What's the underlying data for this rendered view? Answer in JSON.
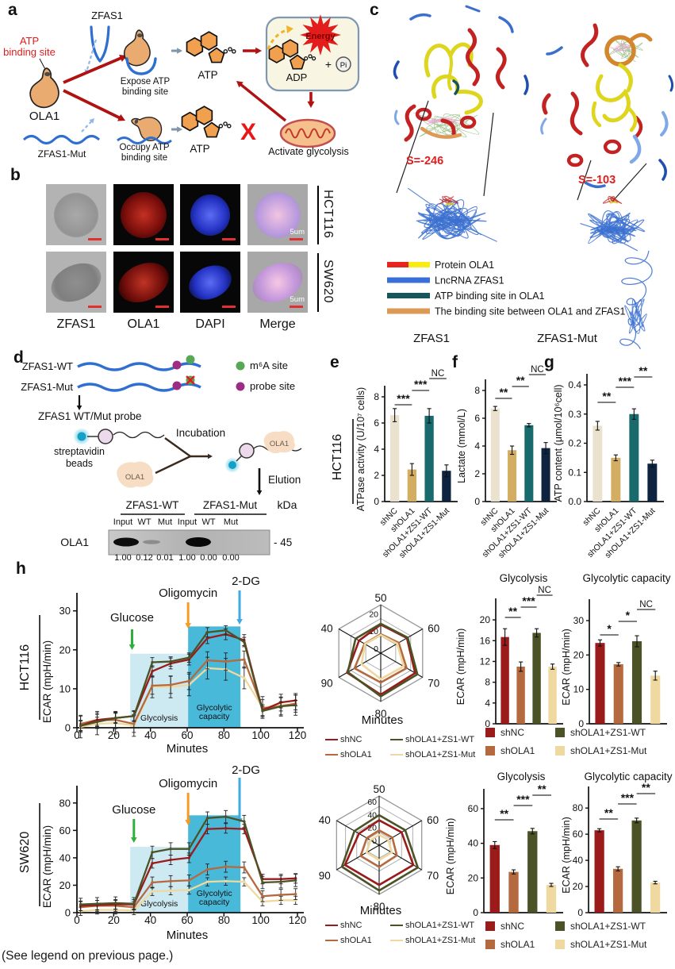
{
  "panels": {
    "a": "a",
    "b": "b",
    "c": "c",
    "d": "d",
    "e": "e",
    "f": "f",
    "g": "g",
    "h": "h"
  },
  "footer": "(See legend on previous page.)",
  "colors": {
    "efg_bars": [
      "#eae2cf",
      "#d2ad62",
      "#186a6d",
      "#0d2340"
    ],
    "h_groups": [
      "#9b1b1b",
      "#b5693f",
      "#4b5226",
      "#efd9a0"
    ],
    "glycolysis_fill": "#cde9f1",
    "capacity_fill": "#49b9d9",
    "glucose_arrow": "#2eae3c",
    "oligomycin_arrow": "#f59a23",
    "dg_arrow": "#3fa9e0",
    "rna_blue": "#2f6fd0",
    "accent_red": "#e31c1c"
  },
  "groups": [
    "shNC",
    "shOLA1",
    "shOLA1+ZS1-WT",
    "shOLA1+ZS1-Mut"
  ],
  "panel_a": {
    "zfas1": "ZFAS1",
    "atp_site_line1": "ATP",
    "atp_site_line2": "binding site",
    "ola1": "OLA1",
    "zfas1_mut": "ZFAS1-Mut",
    "expose_line1": "Expose ATP",
    "expose_line2": "binding site",
    "occupy_line1": "Occupy ATP",
    "occupy_line2": "binding site",
    "atp_top": "ATP",
    "atp_bottom": "ATP",
    "energy": "Energy",
    "adp": "ADP",
    "plus": "+",
    "pi": "Pi",
    "x_mark": "X",
    "activate": "Activate glycolysis"
  },
  "panel_b": {
    "columns": [
      "ZFAS1",
      "OLA1",
      "DAPI",
      "Merge"
    ],
    "rows": [
      "HCT116",
      "SW620"
    ],
    "scale": "5um"
  },
  "panel_c": {
    "score_left": "S=-246",
    "score_right": "S=-103",
    "legend": [
      {
        "label": "Protein OLA1",
        "swatch": [
          "#e8251f",
          "#f7ec13"
        ]
      },
      {
        "label": "LncRNA ZFAS1",
        "swatch": [
          "#3a6fd8"
        ]
      },
      {
        "label": "ATP binding site in OLA1",
        "swatch": [
          "#15565c"
        ]
      },
      {
        "label": "The binding site between OLA1 and ZFAS1",
        "swatch": [
          "#dd9a57"
        ]
      }
    ],
    "label_left": "ZFAS1",
    "label_right": "ZFAS1-Mut"
  },
  "panel_d": {
    "wt": "ZFAS1-WT",
    "mut": "ZFAS1-Mut",
    "m6a": "m⁶A site",
    "probe": "probe site",
    "probe_label": "ZFAS1 WT/Mut probe",
    "strep_line1": "streptavidin",
    "strep_line2": "beads",
    "incubation": "Incubation",
    "elution": "Elution",
    "ola1": "OLA1",
    "blot": {
      "group_left": "ZFAS1-WT",
      "group_right": "ZFAS1-Mut",
      "kda": "kDa",
      "lanes": [
        "Input",
        "WT",
        "Mut",
        "Input",
        "WT",
        "Mut"
      ],
      "protein": "OLA1",
      "marker": "- 45",
      "densities": [
        "1.00",
        "0.12",
        "0.01",
        "1.00",
        "0.00",
        "0.00"
      ]
    }
  },
  "chart_data": [
    {
      "id": "e",
      "type": "bar",
      "cell_line": "HCT116",
      "ylabel": "ATPase activity (U/10⁷ cells)",
      "categories": [
        "shNC",
        "shOLA1",
        "shOLA1+ZS1-WT",
        "shOLA1+ZS1-Mut"
      ],
      "values": [
        6.6,
        2.45,
        6.55,
        2.35
      ],
      "errors": [
        0.5,
        0.45,
        0.55,
        0.45
      ],
      "ylim": [
        0,
        8
      ],
      "yticks": [
        0,
        2,
        4,
        6,
        8
      ],
      "sig": [
        {
          "a": 0,
          "b": 1,
          "label": "***"
        },
        {
          "a": 1,
          "b": 2,
          "label": "***"
        },
        {
          "a": 2,
          "b": 3,
          "label": "NC"
        }
      ]
    },
    {
      "id": "f",
      "type": "bar",
      "ylabel": "Lactate (mmol/L)",
      "categories": [
        "shNC",
        "shOLA1",
        "shOLA1+ZS1-WT",
        "shOLA1+ZS1-Mut"
      ],
      "values": [
        6.7,
        3.7,
        5.5,
        3.85
      ],
      "errors": [
        0.15,
        0.3,
        0.12,
        0.4
      ],
      "ylim": [
        0,
        8
      ],
      "yticks": [
        0,
        2,
        4,
        6,
        8
      ],
      "sig": [
        {
          "a": 0,
          "b": 1,
          "label": "**"
        },
        {
          "a": 1,
          "b": 2,
          "label": "**"
        },
        {
          "a": 2,
          "b": 3,
          "label": "NC"
        }
      ]
    },
    {
      "id": "g",
      "type": "bar",
      "ylabel": "ATP content (μmol/10⁶cell)",
      "categories": [
        "shNC",
        "shOLA1",
        "shOLA1+ZS1-WT",
        "shOLA1+ZS1-Mut"
      ],
      "values": [
        0.26,
        0.15,
        0.3,
        0.13
      ],
      "errors": [
        0.015,
        0.01,
        0.018,
        0.012
      ],
      "ylim": [
        0,
        0.4
      ],
      "yticks": [
        0,
        0.1,
        0.2,
        0.3,
        0.4
      ],
      "ydec": 1,
      "sig": [
        {
          "a": 0,
          "b": 1,
          "label": "**"
        },
        {
          "a": 1,
          "b": 2,
          "label": "***"
        },
        {
          "a": 2,
          "b": 3,
          "label": "**"
        }
      ]
    },
    {
      "id": "h_line_hct116",
      "type": "line",
      "cell_line": "HCT116",
      "ylabel": "ECAR (mpH/min)",
      "xlabel": "Minutes",
      "x": [
        2,
        11,
        21,
        31,
        41,
        51,
        61,
        71,
        81,
        91,
        101,
        111,
        119
      ],
      "ylim": [
        0,
        33
      ],
      "yticks": [
        0,
        10,
        20,
        30
      ],
      "xticks": [
        0,
        20,
        40,
        60,
        80,
        100,
        120
      ],
      "series": [
        {
          "name": "shNC",
          "err": 1.4,
          "values": [
            0.5,
            2,
            2.5,
            3,
            14.5,
            16.5,
            17.5,
            23,
            24,
            22.5,
            4.5,
            6.5,
            7
          ]
        },
        {
          "name": "shOLA1",
          "err": 2.2,
          "values": [
            1,
            2,
            2,
            1,
            10.8,
            11,
            12,
            17.3,
            17,
            17.5,
            5,
            5.5,
            6.2
          ]
        },
        {
          "name": "shOLA1+ZS1-WT",
          "err": 1.2,
          "values": [
            0.5,
            1.5,
            2.5,
            3,
            16.8,
            17,
            18,
            24.5,
            25,
            22,
            4.3,
            5.5,
            5.8
          ]
        },
        {
          "name": "shOLA1+ZS1-Mut",
          "err": 2.8,
          "values": [
            0.2,
            1,
            1.2,
            0.6,
            10.5,
            10.5,
            11,
            15.3,
            15,
            12.8,
            5.2,
            5.8,
            6
          ]
        }
      ],
      "regions": [
        {
          "x1": 29,
          "x2": 60.5,
          "top": 19,
          "label": "Glycolysis"
        },
        {
          "x1": 60.5,
          "x2": 89,
          "top": 26,
          "label": "Glycolytic capacity"
        }
      ],
      "arrows": [
        {
          "x": 30,
          "label": "Glucose"
        },
        {
          "x": 60.5,
          "label": "Oligomycin"
        },
        {
          "x": 88.5,
          "label": "2-DG"
        }
      ]
    },
    {
      "id": "h_radar_hct116",
      "type": "radar",
      "axis_label": "Minutes",
      "axes_minutes": [
        50,
        60,
        70,
        80,
        90,
        40
      ],
      "rings": [
        0,
        10,
        20
      ],
      "vmax": 28,
      "series": [
        {
          "name": "shNC",
          "values": [
            16.5,
            17.5,
            23,
            24,
            22.5,
            14.5
          ]
        },
        {
          "name": "shOLA1",
          "values": [
            11,
            12,
            17.3,
            17,
            17.5,
            10.8
          ]
        },
        {
          "name": "shOLA1+ZS1-WT",
          "values": [
            17,
            18,
            24.5,
            25,
            22,
            16.8
          ]
        },
        {
          "name": "shOLA1+ZS1-Mut",
          "values": [
            10.5,
            11,
            15.3,
            15,
            12.8,
            10.5
          ]
        }
      ]
    },
    {
      "id": "h_gly_hct116",
      "type": "bar",
      "title": "Glycolysis",
      "ylabel": "ECAR (mpH/min)",
      "categories": [
        "shNC",
        "shOLA1",
        "shOLA1+ZS1-WT",
        "shOLA1+ZS1-Mut"
      ],
      "values": [
        16.7,
        11,
        17.5,
        11
      ],
      "errors": [
        1.6,
        0.9,
        0.8,
        0.5
      ],
      "ylim": [
        0,
        22
      ],
      "yticks": [
        0,
        4,
        8,
        12,
        16,
        20
      ],
      "hstyle": true,
      "sig": [
        {
          "a": 0,
          "b": 1,
          "label": "**"
        },
        {
          "a": 1,
          "b": 2,
          "label": "***"
        },
        {
          "a": 2,
          "b": 3,
          "label": "NC"
        }
      ]
    },
    {
      "id": "h_cap_hct116",
      "type": "bar",
      "title": "Glycolytic capacity",
      "ylabel": "ECAR (mpH/min)",
      "categories": [
        "shNC",
        "shOLA1",
        "shOLA1+ZS1-WT",
        "shOLA1+ZS1-Mut"
      ],
      "values": [
        23.5,
        17.3,
        24,
        14
      ],
      "errors": [
        0.9,
        0.5,
        1.6,
        1.3
      ],
      "ylim": [
        0,
        33
      ],
      "yticks": [
        0,
        10,
        20,
        30
      ],
      "hstyle": true,
      "sig": [
        {
          "a": 0,
          "b": 1,
          "label": "*"
        },
        {
          "a": 1,
          "b": 2,
          "label": "*"
        },
        {
          "a": 2,
          "b": 3,
          "label": "NC"
        }
      ]
    },
    {
      "id": "h_line_sw620",
      "type": "line",
      "cell_line": "SW620",
      "ylabel": "ECAR (mpH/min)",
      "xlabel": "Minutes",
      "x": [
        2,
        11,
        21,
        31,
        41,
        51,
        61,
        71,
        81,
        91,
        101,
        111,
        119
      ],
      "ylim": [
        0,
        88
      ],
      "yticks": [
        0,
        20,
        40,
        60,
        80
      ],
      "xticks": [
        0,
        20,
        40,
        60,
        80,
        100,
        120
      ],
      "series": [
        {
          "name": "shNC",
          "err": 3.5,
          "values": [
            5,
            5.5,
            6,
            6,
            36,
            38.5,
            40,
            61,
            61.5,
            61,
            24.5,
            24.5,
            25
          ]
        },
        {
          "name": "shOLA1",
          "err": 4,
          "values": [
            4,
            5,
            5,
            4,
            22,
            23,
            23.5,
            31.5,
            33.5,
            33,
            12,
            13,
            13.5
          ]
        },
        {
          "name": "shOLA1+ZS1-WT",
          "err": 4.5,
          "values": [
            6,
            6.5,
            7,
            6.5,
            44,
            46.5,
            46.5,
            69,
            70,
            66.5,
            22,
            22.5,
            23.5
          ]
        },
        {
          "name": "shOLA1+ZS1-Mut",
          "err": 3,
          "values": [
            1,
            2,
            2,
            1.5,
            15.5,
            16,
            16.5,
            22.5,
            23,
            22.5,
            8,
            9,
            9
          ]
        }
      ],
      "regions": [
        {
          "x1": 29,
          "x2": 60.5,
          "top": 48,
          "label": "Glycolysis"
        },
        {
          "x1": 60.5,
          "x2": 89,
          "top": 71,
          "label": "Glycolytic capacity"
        }
      ],
      "arrows": [
        {
          "x": 31,
          "label": "Glucose"
        },
        {
          "x": 60.5,
          "label": "Oligomycin"
        },
        {
          "x": 88.5,
          "label": "2-DG"
        }
      ]
    },
    {
      "id": "h_radar_sw620",
      "type": "radar",
      "axis_label": "Minutes",
      "axes_minutes": [
        50,
        60,
        70,
        80,
        90,
        40
      ],
      "rings": [
        0,
        20,
        40,
        60
      ],
      "vmax": 76,
      "series": [
        {
          "name": "shNC",
          "values": [
            38.5,
            40,
            61,
            61.5,
            61,
            36
          ]
        },
        {
          "name": "shOLA1",
          "values": [
            23,
            23.5,
            31.5,
            33.5,
            33,
            22
          ]
        },
        {
          "name": "shOLA1+ZS1-WT",
          "values": [
            46.5,
            46.5,
            69,
            70,
            66.5,
            44
          ]
        },
        {
          "name": "shOLA1+ZS1-Mut",
          "values": [
            16,
            16.5,
            22.5,
            23,
            22.5,
            15.5
          ]
        }
      ]
    },
    {
      "id": "h_gly_sw620",
      "type": "bar",
      "title": "Glycolysis",
      "ylabel": "ECAR (mpH/min)",
      "categories": [
        "shNC",
        "shOLA1",
        "shOLA1+ZS1-WT",
        "shOLA1+ZS1-Mut"
      ],
      "values": [
        39,
        23.5,
        47,
        16
      ],
      "errors": [
        2,
        1.2,
        1.6,
        0.9
      ],
      "ylim": [
        0,
        65
      ],
      "yticks": [
        0,
        20,
        40,
        60
      ],
      "hstyle": true,
      "sig": [
        {
          "a": 0,
          "b": 1,
          "label": "**"
        },
        {
          "a": 1,
          "b": 2,
          "label": "***"
        },
        {
          "a": 2,
          "b": 3,
          "label": "**"
        }
      ]
    },
    {
      "id": "h_cap_sw620",
      "type": "bar",
      "title": "Glycolytic capacity",
      "ylabel": "ECAR (mpH/min)",
      "categories": [
        "shNC",
        "shOLA1",
        "shOLA1+ZS1-WT",
        "shOLA1+ZS1-Mut"
      ],
      "values": [
        63,
        33.5,
        70.5,
        23
      ],
      "errors": [
        1.2,
        1.6,
        1.8,
        1
      ],
      "ylim": [
        0,
        88
      ],
      "yticks": [
        0,
        20,
        40,
        60,
        80
      ],
      "hstyle": true,
      "sig": [
        {
          "a": 0,
          "b": 1,
          "label": "**"
        },
        {
          "a": 1,
          "b": 2,
          "label": "***"
        },
        {
          "a": 2,
          "b": 3,
          "label": "**"
        }
      ]
    }
  ]
}
